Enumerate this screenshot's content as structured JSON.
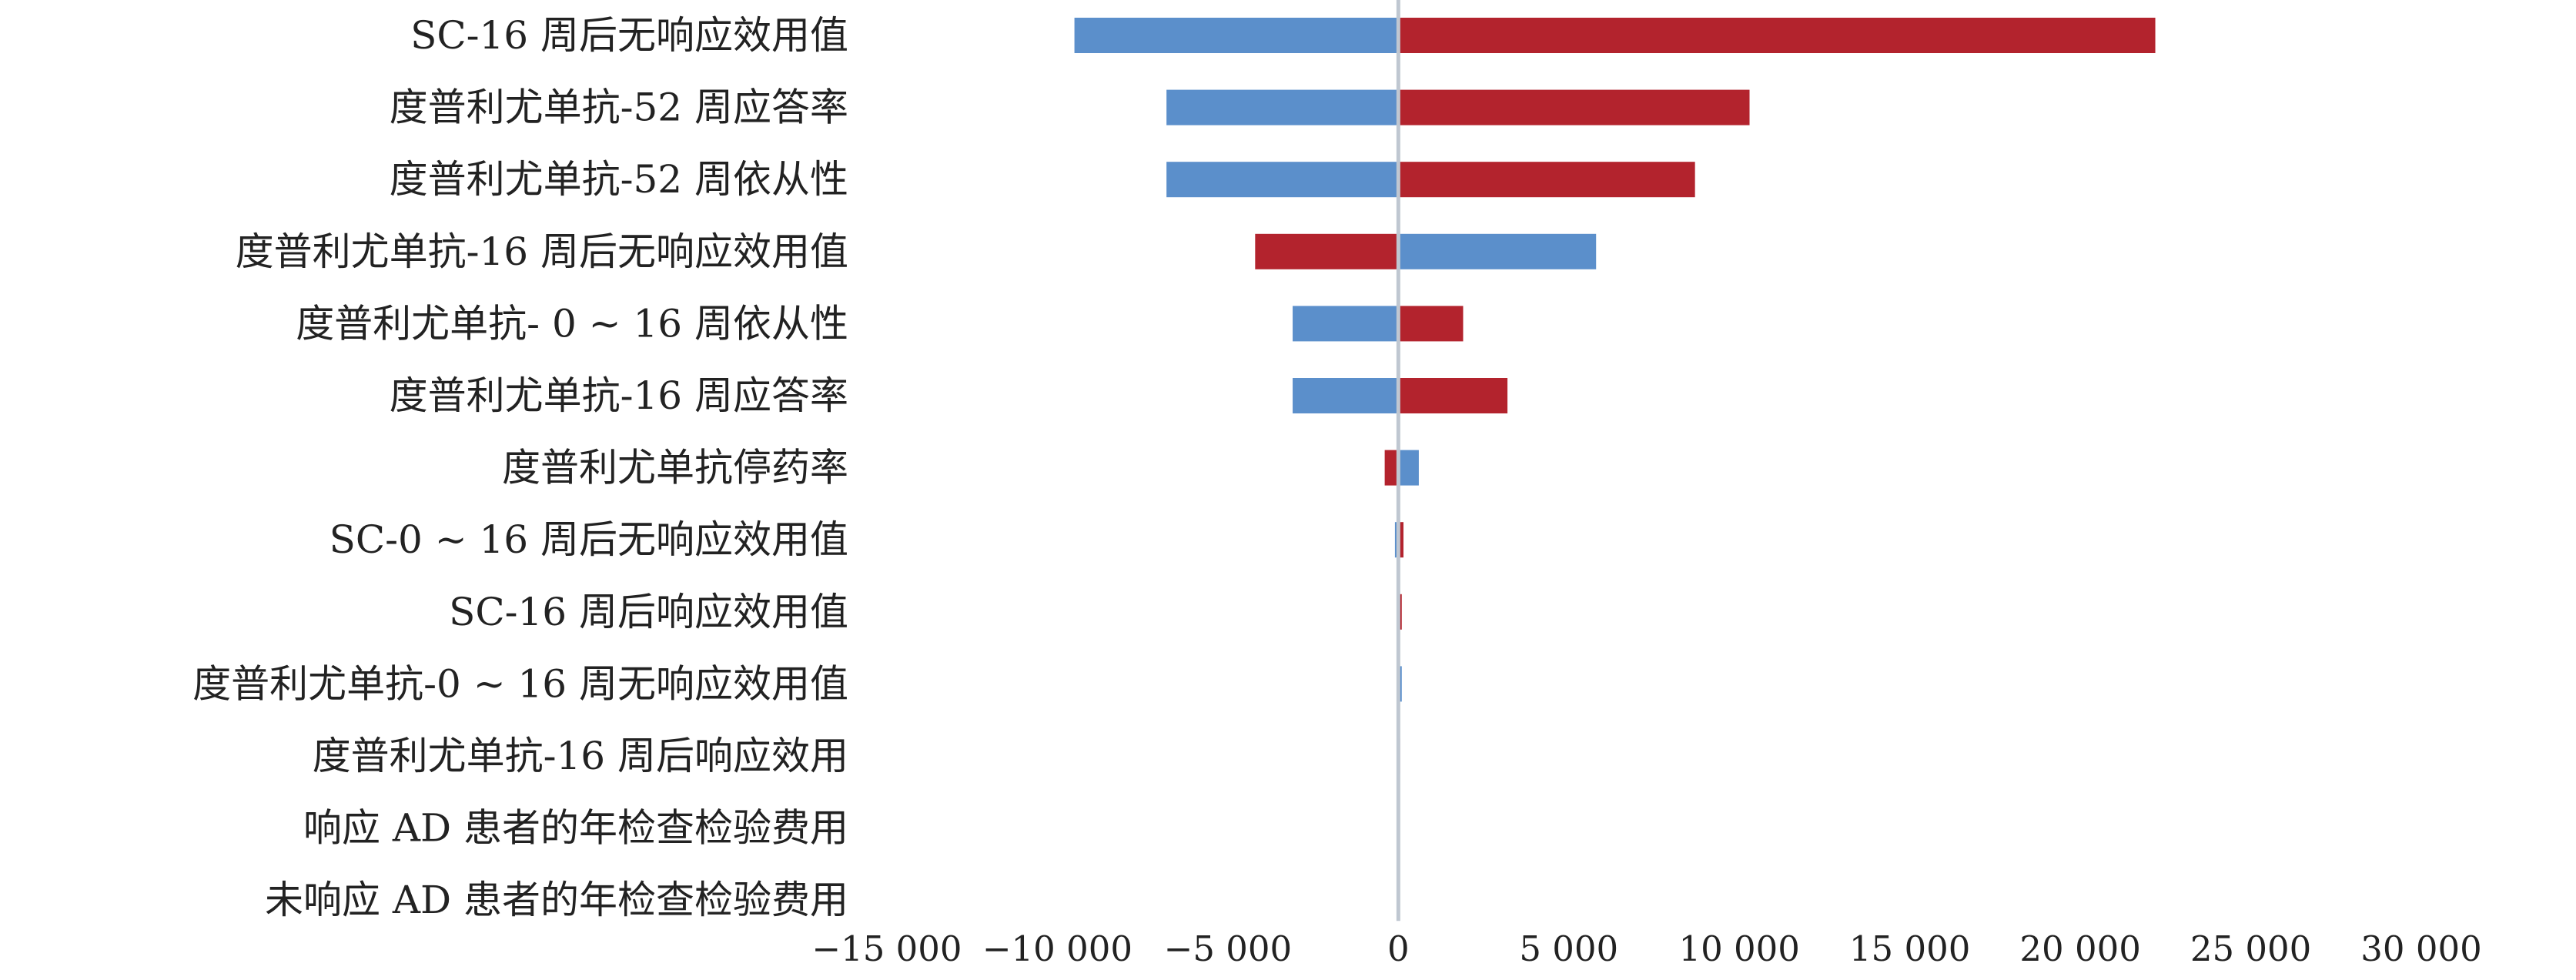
{
  "chart_data": {
    "type": "bar",
    "orientation": "horizontal",
    "title": "",
    "xlabel": "",
    "ylabel": "",
    "xlim": [
      -15000,
      30000
    ],
    "x_ticks": [
      -15000,
      -10000,
      -5000,
      0,
      5000,
      10000,
      15000,
      20000,
      25000,
      30000
    ],
    "x_tick_labels": [
      "−15 000",
      "−10 000",
      "−5 000",
      "0",
      "5 000",
      "10 000",
      "15 000",
      "20 000",
      "25 000",
      "30 000"
    ],
    "grid": false,
    "legend": "none",
    "colors": {
      "blue": "#5B8FCB",
      "red": "#B3232D",
      "axis": "#BFC7D1"
    },
    "categories": [
      "SC-16 周后无响应效用值",
      "度普利尤单抗-52 周应答率",
      "度普利尤单抗-52 周依从性",
      "度普利尤单抗-16 周后无响应效用值",
      "度普利尤单抗- 0 ~ 16 周依从性",
      "度普利尤单抗-16 周应答率",
      "度普利尤单抗停药率",
      "SC-0 ~ 16 周后无响应效用值",
      "SC-16 周后响应效用值",
      "度普利尤单抗-0 ~ 16 周无响应效用值",
      "度普利尤单抗-16 周后响应效用",
      "响应 AD 患者的年检查检验费用",
      "未响应 AD 患者的年检查检验费用"
    ],
    "series": [
      {
        "values": [
          -9500,
          -6800,
          -6800,
          -4200,
          -3100,
          -3100,
          -400,
          -100,
          -50,
          0,
          0,
          0,
          0
        ],
        "colors": [
          "blue",
          "blue",
          "blue",
          "red",
          "blue",
          "blue",
          "red",
          "blue",
          "blue",
          "blue",
          "blue",
          "blue",
          "blue"
        ]
      },
      {
        "values": [
          22200,
          10300,
          8700,
          5800,
          1900,
          3200,
          600,
          150,
          100,
          100,
          50,
          0,
          0
        ],
        "colors": [
          "red",
          "red",
          "red",
          "blue",
          "red",
          "red",
          "blue",
          "red",
          "red",
          "blue",
          "red",
          "red",
          "red"
        ]
      }
    ]
  }
}
